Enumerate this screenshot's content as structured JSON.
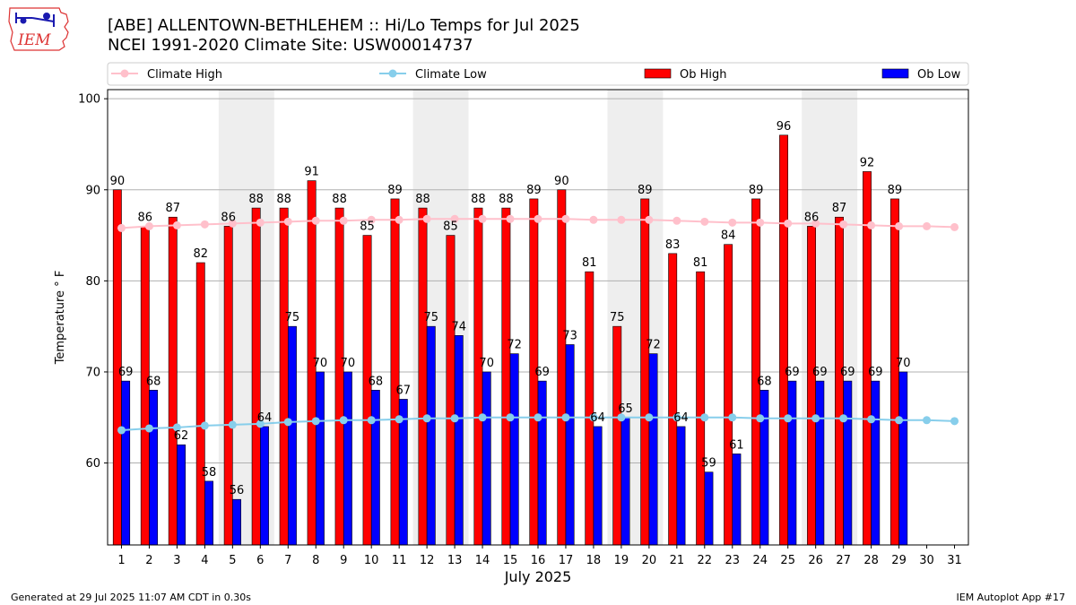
{
  "logo_text": "IEM",
  "title_line1": "[ABE] ALLENTOWN-BETHLEHEM :: Hi/Lo Temps for Jul 2025",
  "title_line2": "NCEI 1991-2020 Climate Site: USW00014737",
  "footer_left": "Generated at 29 Jul 2025 11:07 AM CDT in 0.30s",
  "footer_right": "IEM Autoplot App #17",
  "colors": {
    "ob_high": "#ff0000",
    "ob_low": "#0000ff",
    "climate_high": "#ffc0cb",
    "climate_low": "#87ceeb",
    "weekend_shade": "#eeeeee",
    "grid": "#b0b0b0"
  },
  "chart_data": {
    "type": "bar",
    "xlabel": "July 2025",
    "ylabel": "Temperature $^\\circ$F",
    "ylim": [
      51,
      101
    ],
    "yticks": [
      60,
      70,
      80,
      90,
      100
    ],
    "grid": "horizontal",
    "legend_position": "top",
    "categories": [
      "1",
      "2",
      "3",
      "4",
      "5",
      "6",
      "7",
      "8",
      "9",
      "10",
      "11",
      "12",
      "13",
      "14",
      "15",
      "16",
      "17",
      "18",
      "19",
      "20",
      "21",
      "22",
      "23",
      "24",
      "25",
      "26",
      "27",
      "28",
      "29",
      "30",
      "31"
    ],
    "shaded_days": [
      [
        5,
        6
      ],
      [
        12,
        13
      ],
      [
        19,
        20
      ],
      [
        26,
        27
      ]
    ],
    "series": [
      {
        "name": "Climate High",
        "kind": "line",
        "values": [
          85.8,
          86.0,
          86.1,
          86.2,
          86.3,
          86.4,
          86.5,
          86.6,
          86.6,
          86.7,
          86.7,
          86.8,
          86.8,
          86.8,
          86.8,
          86.8,
          86.8,
          86.7,
          86.7,
          86.7,
          86.6,
          86.5,
          86.4,
          86.4,
          86.3,
          86.3,
          86.2,
          86.1,
          86.0,
          86.0,
          85.9
        ]
      },
      {
        "name": "Climate Low",
        "kind": "line",
        "values": [
          63.6,
          63.8,
          63.9,
          64.1,
          64.2,
          64.3,
          64.5,
          64.6,
          64.7,
          64.7,
          64.8,
          64.9,
          64.9,
          65.0,
          65.0,
          65.0,
          65.0,
          65.0,
          65.0,
          65.0,
          65.0,
          65.0,
          65.0,
          64.9,
          64.9,
          64.9,
          64.9,
          64.8,
          64.7,
          64.7,
          64.6
        ]
      },
      {
        "name": "Ob High",
        "kind": "bar",
        "values": [
          90,
          86,
          87,
          82,
          86,
          88,
          88,
          91,
          88,
          85,
          89,
          88,
          85,
          88,
          88,
          89,
          90,
          81,
          75,
          89,
          83,
          81,
          84,
          89,
          96,
          86,
          87,
          92,
          89,
          null,
          null
        ]
      },
      {
        "name": "Ob Low",
        "kind": "bar",
        "values": [
          69,
          68,
          62,
          58,
          56,
          64,
          75,
          70,
          70,
          68,
          67,
          75,
          74,
          70,
          72,
          69,
          73,
          64,
          65,
          72,
          64,
          59,
          61,
          68,
          69,
          69,
          69,
          69,
          70,
          null,
          null
        ]
      }
    ]
  }
}
